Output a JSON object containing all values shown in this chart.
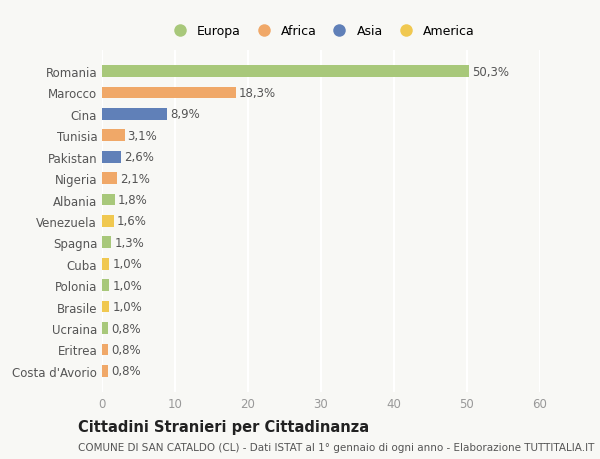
{
  "countries": [
    "Romania",
    "Marocco",
    "Cina",
    "Tunisia",
    "Pakistan",
    "Nigeria",
    "Albania",
    "Venezuela",
    "Spagna",
    "Cuba",
    "Polonia",
    "Brasile",
    "Ucraina",
    "Eritrea",
    "Costa d'Avorio"
  ],
  "values": [
    50.3,
    18.3,
    8.9,
    3.1,
    2.6,
    2.1,
    1.8,
    1.6,
    1.3,
    1.0,
    1.0,
    1.0,
    0.8,
    0.8,
    0.8
  ],
  "labels": [
    "50,3%",
    "18,3%",
    "8,9%",
    "3,1%",
    "2,6%",
    "2,1%",
    "1,8%",
    "1,6%",
    "1,3%",
    "1,0%",
    "1,0%",
    "1,0%",
    "0,8%",
    "0,8%",
    "0,8%"
  ],
  "continents": [
    "Europa",
    "Africa",
    "Asia",
    "Africa",
    "Asia",
    "Africa",
    "Europa",
    "America",
    "Europa",
    "America",
    "Europa",
    "America",
    "Europa",
    "Africa",
    "Africa"
  ],
  "continent_colors": {
    "Europa": "#a8c87a",
    "Africa": "#f0a868",
    "Asia": "#6080b8",
    "America": "#f0c850"
  },
  "legend_order": [
    "Europa",
    "Africa",
    "Asia",
    "America"
  ],
  "title": "Cittadini Stranieri per Cittadinanza",
  "subtitle": "COMUNE DI SAN CATALDO (CL) - Dati ISTAT al 1° gennaio di ogni anno - Elaborazione TUTTITALIA.IT",
  "xlim": [
    0,
    60
  ],
  "xticks": [
    0,
    10,
    20,
    30,
    40,
    50,
    60
  ],
  "background_color": "#f8f8f5",
  "bar_height": 0.55,
  "grid_color": "#ffffff",
  "label_fontsize": 8.5,
  "tick_fontsize": 8.5,
  "title_fontsize": 10.5,
  "subtitle_fontsize": 7.5
}
